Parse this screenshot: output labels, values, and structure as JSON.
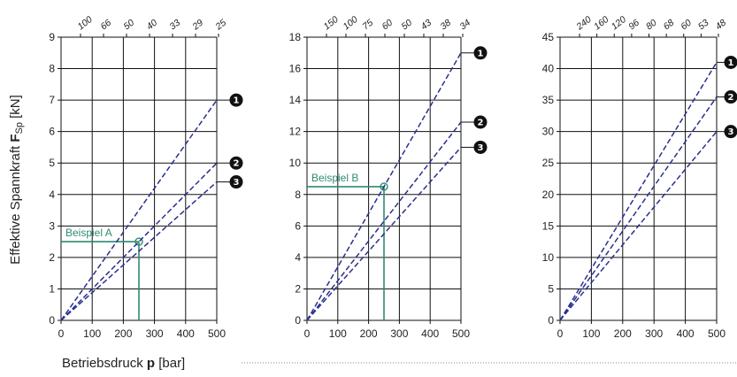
{
  "y_axis_label_pre": "Effektive Spannkraft ",
  "y_axis_label_bold": "F",
  "y_axis_label_sub": "Sp",
  "y_axis_label_post": " [kN]",
  "x_axis_label_pre": "Betriebsdruck ",
  "x_axis_label_bold": "p",
  "x_axis_label_post": " [bar]",
  "colors": {
    "line": "#2b2f8f",
    "annotation": "#2e8b73",
    "grid": "#111111"
  },
  "chart_data": [
    {
      "type": "line",
      "xlim": [
        0,
        500
      ],
      "ylim": [
        0,
        9
      ],
      "x_ticks": [
        "0",
        "100",
        "200",
        "300",
        "400",
        "500"
      ],
      "y_ticks": [
        "0",
        "1",
        "2",
        "3",
        "4",
        "5",
        "6",
        "7",
        "8",
        "9"
      ],
      "top_ticks": [
        "100",
        "66",
        "50",
        "40",
        "33",
        "29",
        "25"
      ],
      "series": [
        {
          "name": "1",
          "x": [
            0,
            500
          ],
          "y": [
            0,
            7.0
          ]
        },
        {
          "name": "2",
          "x": [
            0,
            500
          ],
          "y": [
            0,
            5.0
          ]
        },
        {
          "name": "3",
          "x": [
            0,
            500
          ],
          "y": [
            0,
            4.4
          ]
        }
      ],
      "annotation": {
        "label": "Beispiel A",
        "x": 250,
        "y": 2.5
      }
    },
    {
      "type": "line",
      "xlim": [
        0,
        500
      ],
      "ylim": [
        0,
        18
      ],
      "x_ticks": [
        "0",
        "100",
        "200",
        "300",
        "400",
        "500"
      ],
      "y_ticks": [
        "0",
        "2",
        "4",
        "6",
        "8",
        "10",
        "12",
        "14",
        "16",
        "18"
      ],
      "top_ticks": [
        "150",
        "100",
        "75",
        "60",
        "50",
        "43",
        "38",
        "34"
      ],
      "series": [
        {
          "name": "1",
          "x": [
            0,
            500
          ],
          "y": [
            0,
            17.0
          ]
        },
        {
          "name": "2",
          "x": [
            0,
            500
          ],
          "y": [
            0,
            12.6
          ]
        },
        {
          "name": "3",
          "x": [
            0,
            500
          ],
          "y": [
            0,
            11.0
          ]
        }
      ],
      "annotation": {
        "label": "Beispiel B",
        "x": 250,
        "y": 8.5
      }
    },
    {
      "type": "line",
      "xlim": [
        0,
        500
      ],
      "ylim": [
        0,
        45
      ],
      "x_ticks": [
        "0",
        "100",
        "200",
        "300",
        "400",
        "500"
      ],
      "y_ticks": [
        "0",
        "5",
        "10",
        "15",
        "20",
        "25",
        "30",
        "35",
        "40",
        "45"
      ],
      "top_ticks": [
        "240",
        "160",
        "120",
        "96",
        "80",
        "68",
        "60",
        "53",
        "48"
      ],
      "series": [
        {
          "name": "1",
          "x": [
            0,
            500
          ],
          "y": [
            0,
            41.0
          ]
        },
        {
          "name": "2",
          "x": [
            0,
            500
          ],
          "y": [
            0,
            35.5
          ]
        },
        {
          "name": "3",
          "x": [
            0,
            500
          ],
          "y": [
            0,
            30.0
          ]
        }
      ]
    }
  ]
}
